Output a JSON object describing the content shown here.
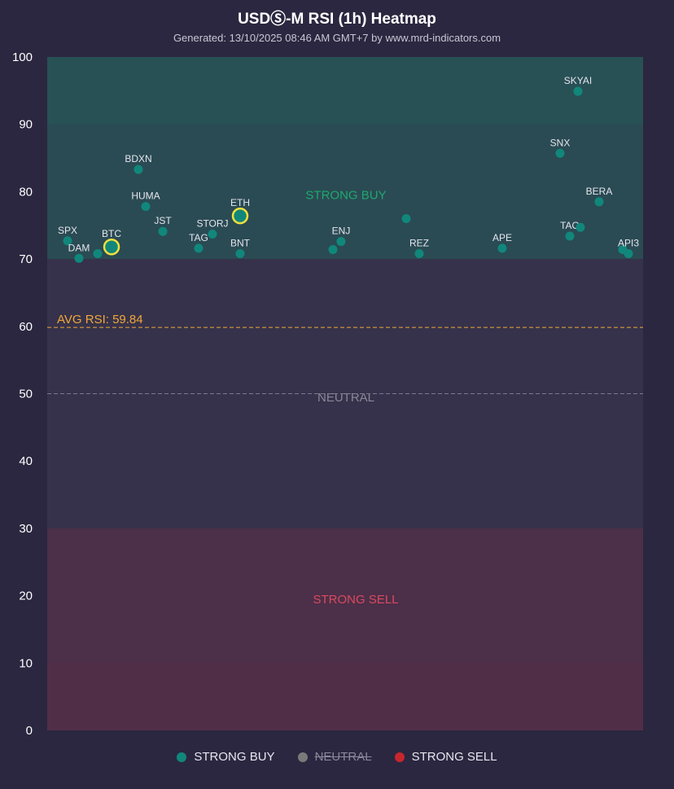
{
  "chart_data": {
    "type": "scatter",
    "title": "USDⓈ-M RSI (1h) Heatmap",
    "subtitle": "Generated: 13/10/2025 08:46 AM GMT+7 by www.mrd-indicators.com",
    "ylim": [
      0,
      100
    ],
    "yticks": [
      0,
      10,
      20,
      30,
      40,
      50,
      60,
      70,
      80,
      90,
      100
    ],
    "zones": [
      {
        "label": "STRONG BUY",
        "from": 70,
        "to": 100,
        "color": "#1fa870"
      },
      {
        "label": "NEUTRAL",
        "from": 30,
        "to": 70,
        "color": "#8a8798"
      },
      {
        "label": "STRONG SELL",
        "from": 0,
        "to": 30,
        "color": "#d94a5e"
      }
    ],
    "reference_lines": [
      {
        "label": "AVG RSI: 59.84",
        "value": 59.84,
        "color": "#f0a83a"
      },
      {
        "label": "",
        "value": 50,
        "color": "#7c7990"
      }
    ],
    "point_color": "#11877c",
    "highlight_color": "#f3e03b",
    "points": [
      {
        "label": "SPX",
        "rsi": 72.7
      },
      {
        "label": "DAM",
        "rsi": 70.1
      },
      {
        "label": "",
        "rsi": 70.8
      },
      {
        "label": "BTC",
        "rsi": 71.8,
        "highlight": true
      },
      {
        "label": "BDXN",
        "rsi": 83.3
      },
      {
        "label": "HUMA",
        "rsi": 77.8
      },
      {
        "label": "JST",
        "rsi": 74.1
      },
      {
        "label": "TAG",
        "rsi": 71.6
      },
      {
        "label": "STORJ",
        "rsi": 73.7
      },
      {
        "label": "ETH",
        "rsi": 76.4,
        "highlight": true
      },
      {
        "label": "BNT",
        "rsi": 70.8
      },
      {
        "label": "",
        "rsi": 71.4
      },
      {
        "label": "ENJ",
        "rsi": 72.6
      },
      {
        "label": "",
        "rsi": 76.0
      },
      {
        "label": "REZ",
        "rsi": 70.8
      },
      {
        "label": "APE",
        "rsi": 71.6
      },
      {
        "label": "SNX",
        "rsi": 85.7
      },
      {
        "label": "SKYAI",
        "rsi": 94.9
      },
      {
        "label": "TAO",
        "rsi": 73.4
      },
      {
        "label": "",
        "rsi": 74.7
      },
      {
        "label": "BERA",
        "rsi": 78.5
      },
      {
        "label": "",
        "rsi": 71.4
      },
      {
        "label": "API3",
        "rsi": 70.8
      }
    ]
  },
  "legend": [
    {
      "label": "STRONG BUY",
      "color": "#11877c",
      "hidden": false
    },
    {
      "label": "NEUTRAL",
      "color": "#7a7a7a",
      "hidden": true
    },
    {
      "label": "STRONG SELL",
      "color": "#c8262e",
      "hidden": false
    }
  ]
}
